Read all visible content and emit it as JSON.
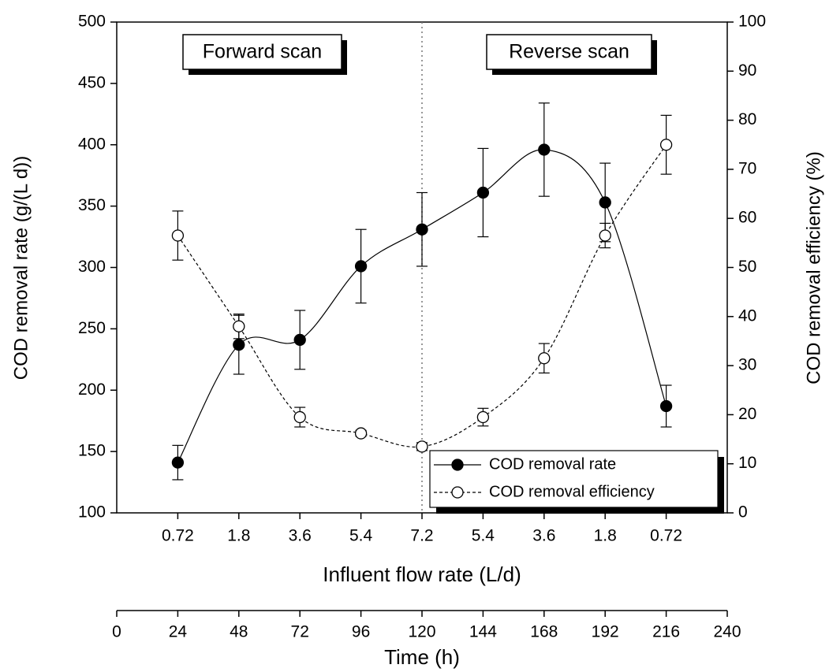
{
  "chart_data": {
    "type": "line",
    "x": [
      24,
      48,
      72,
      96,
      120,
      144,
      168,
      192,
      216
    ],
    "categories": [
      "0.72",
      "1.8",
      "3.6",
      "5.4",
      "7.2",
      "5.4",
      "3.6",
      "1.8",
      "0.72"
    ],
    "category_axis_label": "Influent flow rate (L/d)",
    "xlabel": "Time (h)",
    "xlim": [
      0,
      240
    ],
    "xticks": [
      0,
      24,
      48,
      72,
      96,
      120,
      144,
      168,
      192,
      216,
      240
    ],
    "ylabel": "COD removal rate (g/(L d))",
    "ylim": [
      100,
      500
    ],
    "yticks": [
      100,
      150,
      200,
      250,
      300,
      350,
      400,
      450,
      500
    ],
    "y2label": "COD removal efficiency (%)",
    "y2lim": [
      0,
      100
    ],
    "y2ticks": [
      0,
      10,
      20,
      30,
      40,
      50,
      60,
      70,
      80,
      90,
      100
    ],
    "divider_x": 120,
    "annotations": [
      "Forward scan",
      "Reverse scan"
    ],
    "legend": "lower right",
    "series": [
      {
        "name": "COD removal rate",
        "color": "#000000",
        "marker": "filled",
        "line": "solid",
        "values": [
          141,
          237,
          241,
          301,
          331,
          361,
          396,
          353,
          187
        ],
        "errors": [
          14,
          24,
          24,
          30,
          30,
          36,
          38,
          32,
          17
        ]
      },
      {
        "name": "COD removal efficiency",
        "color": "#000000",
        "marker": "open",
        "line": "dashed",
        "axis": "y2",
        "values": [
          56.5,
          38,
          19.5,
          16.2,
          13.5,
          19.5,
          31.5,
          56.5,
          75
        ],
        "errors": [
          5,
          2.5,
          2,
          0.6,
          0.8,
          1.8,
          3,
          2.5,
          6
        ]
      }
    ]
  }
}
